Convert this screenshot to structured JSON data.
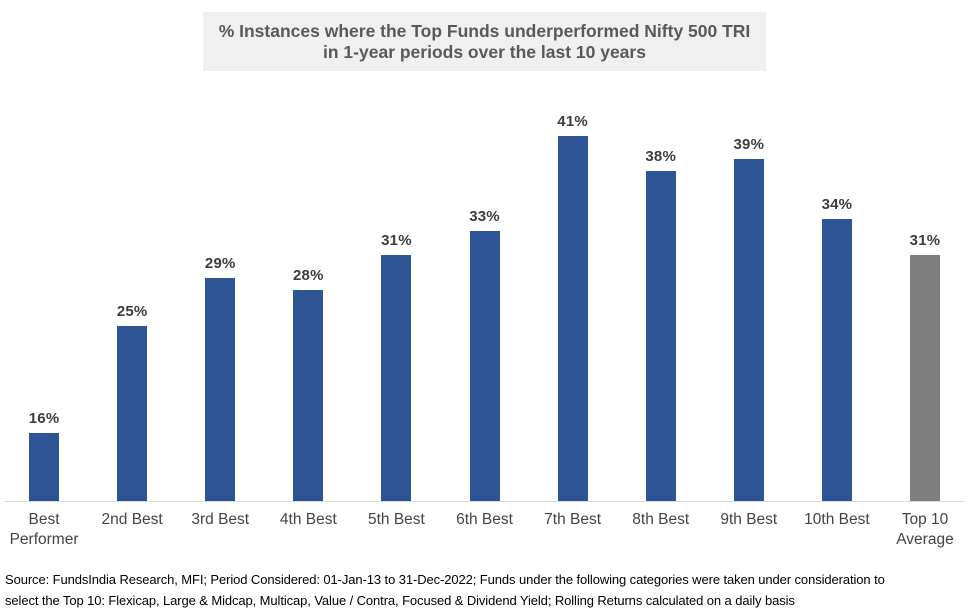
{
  "header": {
    "title_line1": "% Instances where the Top Funds underperformed Nifty 500 TRI",
    "title_line2": "in 1-year periods over the last 10 years",
    "title_bg_color": "#f0f0f0",
    "title_text_color": "#595959"
  },
  "chart_data": {
    "type": "bar",
    "title": "% Instances where the Top Funds underperformed Nifty 500 TRI in 1-year periods over the last 10 years",
    "categories": [
      "Best Performer",
      "2nd Best",
      "3rd Best",
      "4th Best",
      "5th Best",
      "6th Best",
      "7th Best",
      "8th Best",
      "9th Best",
      "10th Best",
      "Top 10 Average"
    ],
    "values": [
      16,
      25,
      29,
      28,
      31,
      33,
      41,
      38,
      39,
      34,
      31
    ],
    "labels": [
      "16%",
      "25%",
      "29%",
      "28%",
      "31%",
      "33%",
      "41%",
      "38%",
      "39%",
      "34%",
      "31%"
    ],
    "xlabel": "",
    "ylabel": "",
    "ylim": [
      10.3,
      45
    ],
    "axis_hidden": true,
    "grid": false,
    "legend_position": "none",
    "bar_color": "#2F5496",
    "highlight_index": 10,
    "highlight_color": "#7F7F7F",
    "axis_line_color": "#d9d9d9",
    "data_label_color": "#3d3d3d",
    "category_label_color": "#444444"
  },
  "footer": {
    "line1": "Source: FundsIndia Research, MFI; Period Considered: 01-Jan-13 to 31-Dec-2022; Funds under the following categories were taken under consideration to",
    "line2": "select the Top 10: Flexicap, Large & Midcap, Multicap, Value / Contra, Focused & Dividend Yield; Rolling Returns calculated on a daily basis"
  }
}
